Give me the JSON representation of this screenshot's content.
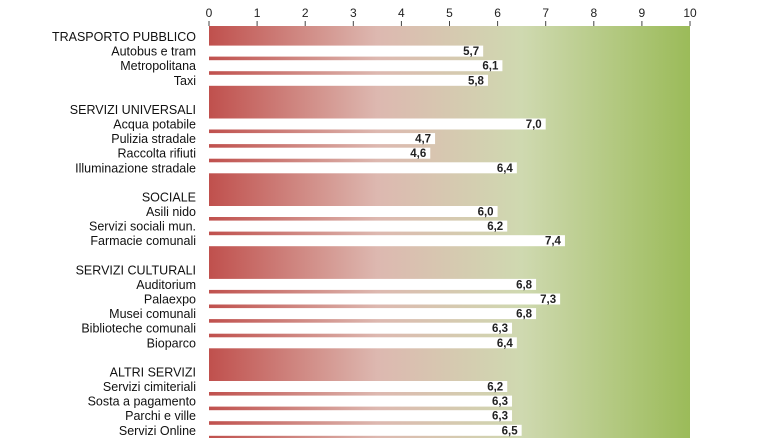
{
  "chart_data": {
    "type": "bar",
    "orientation": "horizontal",
    "xlim": [
      0,
      10
    ],
    "x_ticks": [
      "0",
      "1",
      "2",
      "3",
      "4",
      "5",
      "6",
      "7",
      "8",
      "9",
      "10"
    ],
    "background_gradient": [
      "#c0504d",
      "#ddb8b0",
      "#cfd9b0",
      "#9bbb59"
    ],
    "bar_color": "#ffffff",
    "groups": [
      {
        "label": "TRASPORTO PUBBLICO",
        "items": [
          {
            "label": "Autobus e tram",
            "value": 5.7,
            "value_label": "5,7"
          },
          {
            "label": "Metropolitana",
            "value": 6.1,
            "value_label": "6,1"
          },
          {
            "label": "Taxi",
            "value": 5.8,
            "value_label": "5,8"
          }
        ]
      },
      {
        "label": "SERVIZI UNIVERSALI",
        "items": [
          {
            "label": "Acqua potabile",
            "value": 7.0,
            "value_label": "7,0"
          },
          {
            "label": "Pulizia stradale",
            "value": 4.7,
            "value_label": "4,7"
          },
          {
            "label": "Raccolta rifiuti",
            "value": 4.6,
            "value_label": "4,6"
          },
          {
            "label": "Illuminazione stradale",
            "value": 6.4,
            "value_label": "6,4"
          }
        ]
      },
      {
        "label": "SOCIALE",
        "items": [
          {
            "label": "Asili nido",
            "value": 6.0,
            "value_label": "6,0"
          },
          {
            "label": "Servizi sociali mun.",
            "value": 6.2,
            "value_label": "6,2"
          },
          {
            "label": "Farmacie comunali",
            "value": 7.4,
            "value_label": "7,4"
          }
        ]
      },
      {
        "label": "SERVIZI CULTURALI",
        "items": [
          {
            "label": "Auditorium",
            "value": 6.8,
            "value_label": "6,8"
          },
          {
            "label": "Palaexpo",
            "value": 7.3,
            "value_label": "7,3"
          },
          {
            "label": "Musei comunali",
            "value": 6.8,
            "value_label": "6,8"
          },
          {
            "label": "Biblioteche comunali",
            "value": 6.3,
            "value_label": "6,3"
          },
          {
            "label": "Bioparco",
            "value": 6.4,
            "value_label": "6,4"
          }
        ]
      },
      {
        "label": "ALTRI SERVIZI",
        "items": [
          {
            "label": "Servizi cimiteriali",
            "value": 6.2,
            "value_label": "6,2"
          },
          {
            "label": "Sosta a pagamento",
            "value": 6.3,
            "value_label": "6,3"
          },
          {
            "label": "Parchi e ville",
            "value": 6.3,
            "value_label": "6,3"
          },
          {
            "label": "Servizi Online",
            "value": 6.5,
            "value_label": "6,5"
          }
        ]
      }
    ]
  }
}
